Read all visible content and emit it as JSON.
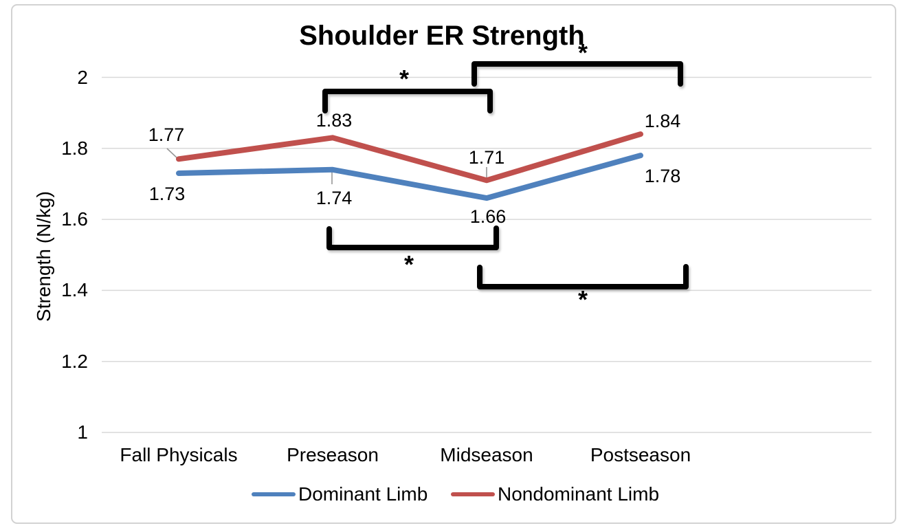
{
  "chart_data": {
    "type": "line",
    "title": "Shoulder ER Strength",
    "xlabel": "",
    "ylabel": "Strength (N/kg)",
    "categories": [
      "Fall Physicals",
      "Preseason",
      "Midseason",
      "Postseason"
    ],
    "series": [
      {
        "name": "Dominant Limb",
        "color": "#4F81BD",
        "values": [
          1.73,
          1.74,
          1.66,
          1.78
        ],
        "labels": [
          "1.73",
          "1.74",
          "1.66",
          "1.78"
        ]
      },
      {
        "name": "Nondominant Limb",
        "color": "#C0504D",
        "values": [
          1.77,
          1.83,
          1.71,
          1.84
        ],
        "labels": [
          "1.77",
          "1.83",
          "1.71",
          "1.84"
        ]
      }
    ],
    "ylim": [
      1,
      2
    ],
    "yticks": [
      2,
      1.8,
      1.6,
      1.4,
      1.2,
      1
    ],
    "ytick_labels": [
      "2",
      "1.8",
      "1.6",
      "1.4",
      "1.2",
      "1"
    ],
    "grid": true,
    "legend_position": "bottom",
    "significance_brackets": [
      {
        "between": [
          "Preseason",
          "Midseason"
        ],
        "position": "above",
        "label": "*"
      },
      {
        "between": [
          "Midseason",
          "Postseason"
        ],
        "position": "above",
        "label": "*"
      },
      {
        "between": [
          "Preseason",
          "Midseason"
        ],
        "position": "below",
        "label": "*"
      },
      {
        "between": [
          "Midseason",
          "Postseason"
        ],
        "position": "below",
        "label": "*"
      }
    ]
  },
  "colors": {
    "dominant_line": "#4F81BD",
    "nondominant_line": "#C0504D",
    "gridline": "#D9D9D9",
    "bracket": "#000000",
    "leader_line": "#969696",
    "frame_border": "#D2D2D2",
    "text": "#000000",
    "background": "#FFFFFF"
  }
}
